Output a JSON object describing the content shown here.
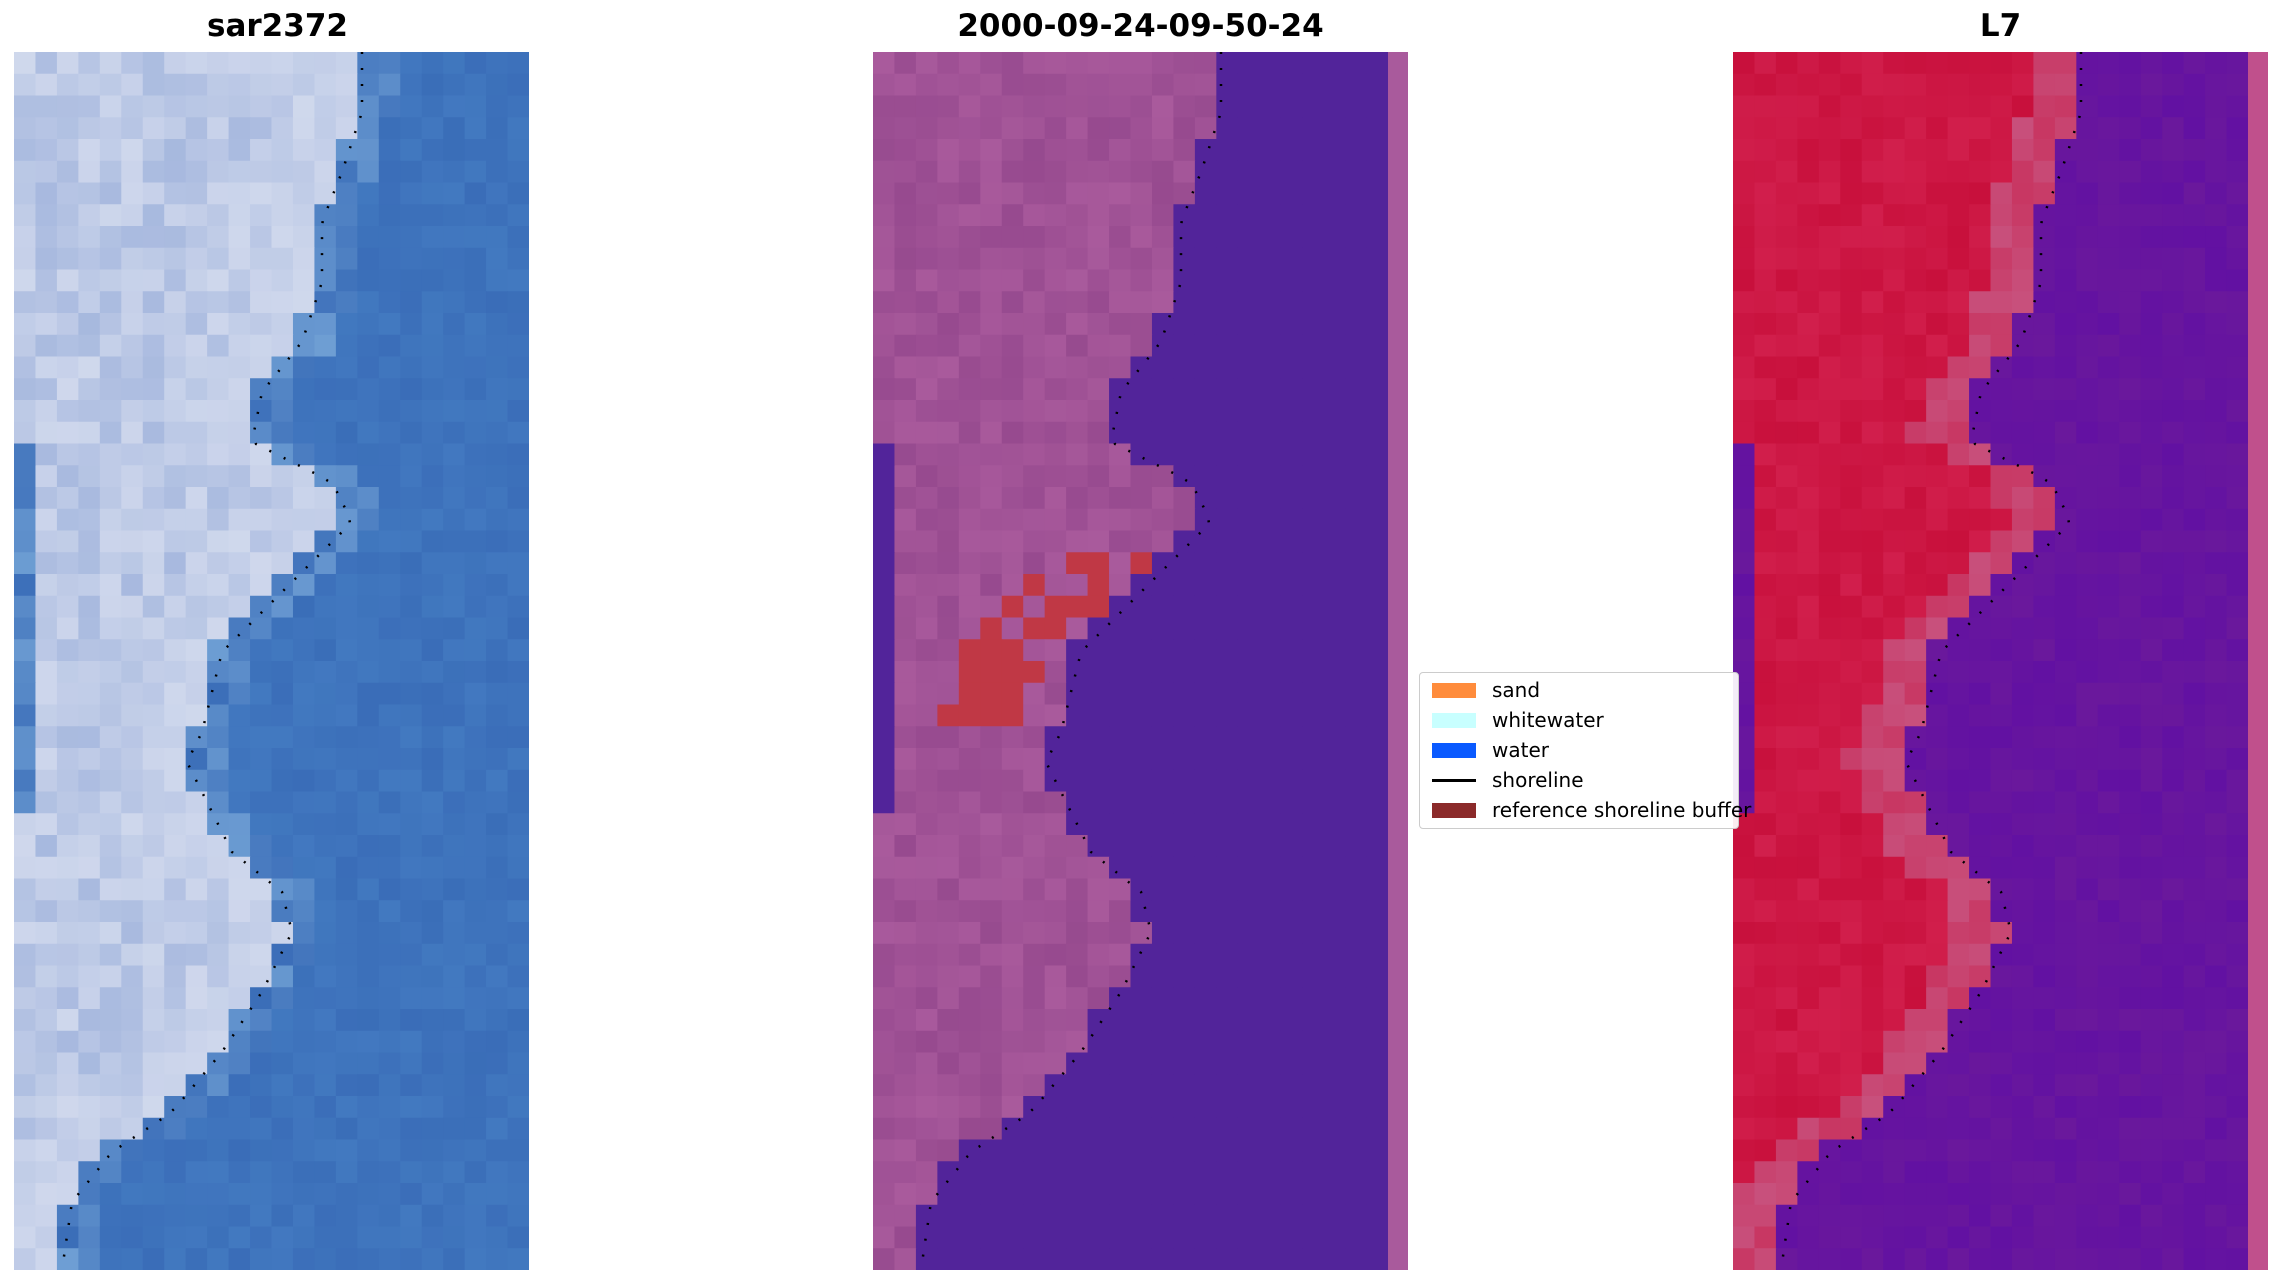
{
  "panels": [
    {
      "title": "sar2372",
      "style": "rgb"
    },
    {
      "title": "2000-09-24-09-50-24",
      "style": "classified"
    },
    {
      "title": "L7",
      "style": "index"
    }
  ],
  "legend": [
    {
      "label": "sand",
      "color": "#ff8c3c",
      "kind": "patch"
    },
    {
      "label": "whitewater",
      "color": "#c8ffff",
      "kind": "patch"
    },
    {
      "label": "water",
      "color": "#0a5aff",
      "kind": "patch"
    },
    {
      "label": "shoreline",
      "color": "#000000",
      "kind": "line"
    },
    {
      "label": "reference shoreline buffer",
      "color": "#8b2a2a",
      "kind": "patch"
    }
  ],
  "colors": {
    "water_rgb": "#3a6db8",
    "sand_rgb": "#dfe4f2",
    "water_classified": "#52249a",
    "sand_classified": "#a95a9c",
    "buffer_classified": "#c03845",
    "water_index": "#6a189c",
    "sand_index": "#c8103c",
    "shoreline": "#000000"
  }
}
